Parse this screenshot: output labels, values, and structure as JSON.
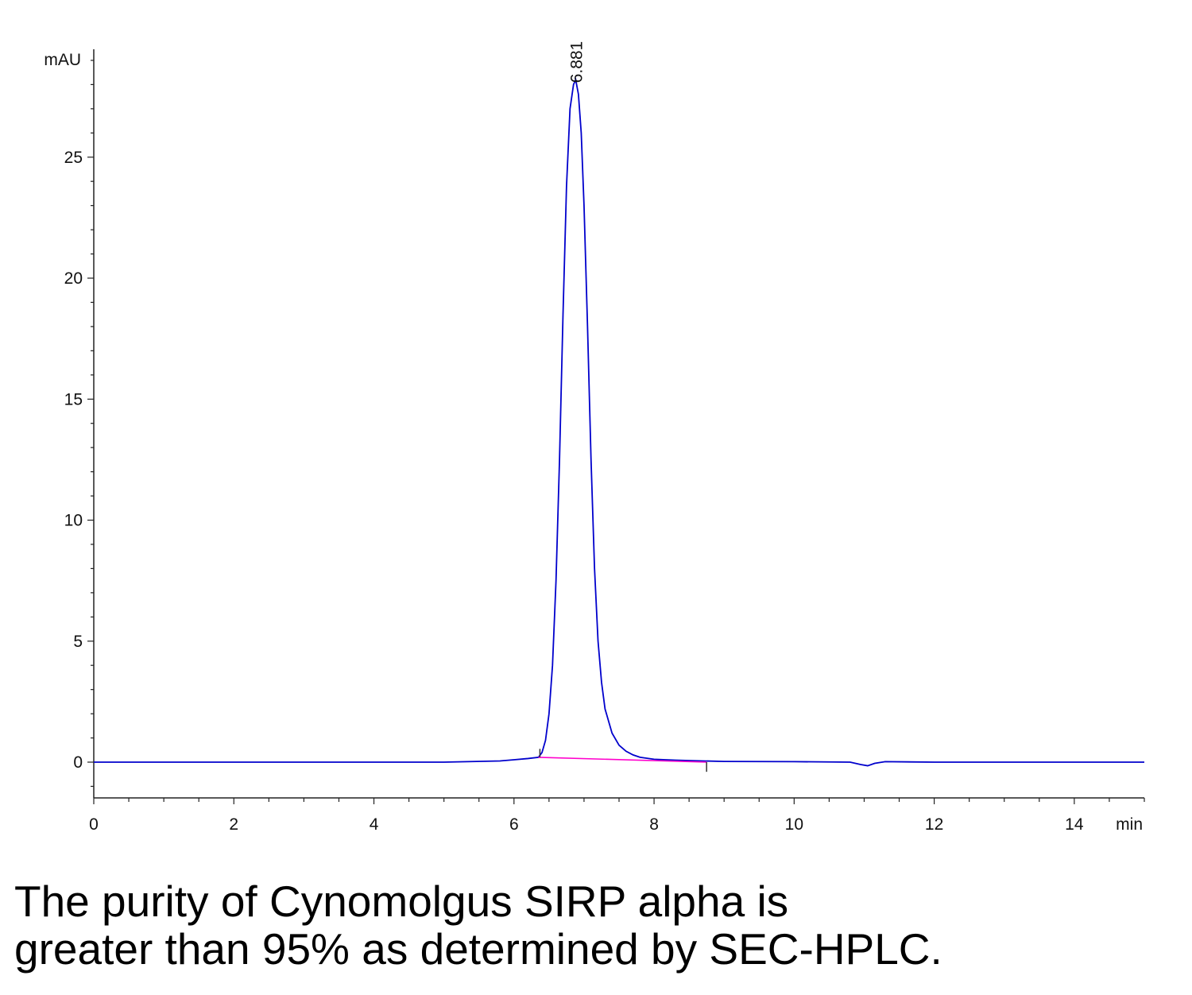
{
  "chart_data": {
    "type": "line",
    "ylabel": "mAU",
    "xlabel": "min",
    "xlim": [
      0,
      15
    ],
    "ylim": [
      -1.5,
      29
    ],
    "x_ticks": [
      0,
      2,
      4,
      6,
      8,
      10,
      12,
      14
    ],
    "y_ticks": [
      0,
      5,
      10,
      15,
      20,
      25
    ],
    "peak_labels": [
      {
        "x": 6.881,
        "y": 28.2,
        "text": "6.881"
      }
    ],
    "series": [
      {
        "color": "#0000cc",
        "x": [
          0.0,
          0.5,
          1.0,
          2.0,
          3.0,
          4.0,
          5.0,
          5.8,
          6.0,
          6.2,
          6.35,
          6.4,
          6.45,
          6.5,
          6.55,
          6.6,
          6.65,
          6.7,
          6.75,
          6.8,
          6.85,
          6.881,
          6.92,
          6.96,
          7.0,
          7.05,
          7.1,
          7.15,
          7.2,
          7.25,
          7.3,
          7.4,
          7.5,
          7.6,
          7.7,
          7.8,
          8.0,
          8.3,
          8.7,
          9.0,
          10.0,
          10.8,
          10.95,
          11.05,
          11.15,
          11.3,
          12.0,
          13.0,
          14.0,
          15.0
        ],
        "y": [
          0.0,
          0.0,
          0.0,
          0.0,
          0.0,
          0.0,
          0.0,
          0.05,
          0.1,
          0.15,
          0.2,
          0.4,
          0.9,
          2.0,
          4.0,
          7.5,
          12.5,
          18.5,
          23.8,
          27.0,
          28.0,
          28.2,
          27.6,
          26.0,
          23.0,
          18.0,
          12.5,
          8.0,
          5.0,
          3.3,
          2.2,
          1.2,
          0.7,
          0.45,
          0.3,
          0.2,
          0.12,
          0.08,
          0.05,
          0.03,
          0.02,
          0.0,
          -0.1,
          -0.15,
          -0.05,
          0.02,
          0.0,
          0.0,
          0.0,
          0.0
        ]
      },
      {
        "color": "#ff00cc",
        "x": [
          6.35,
          8.75
        ],
        "y": [
          0.2,
          0.0
        ]
      }
    ]
  },
  "caption": {
    "line1": "The purity of Cynomolgus SIRP alpha is",
    "line2": "greater than 95% as determined by SEC-HPLC."
  }
}
